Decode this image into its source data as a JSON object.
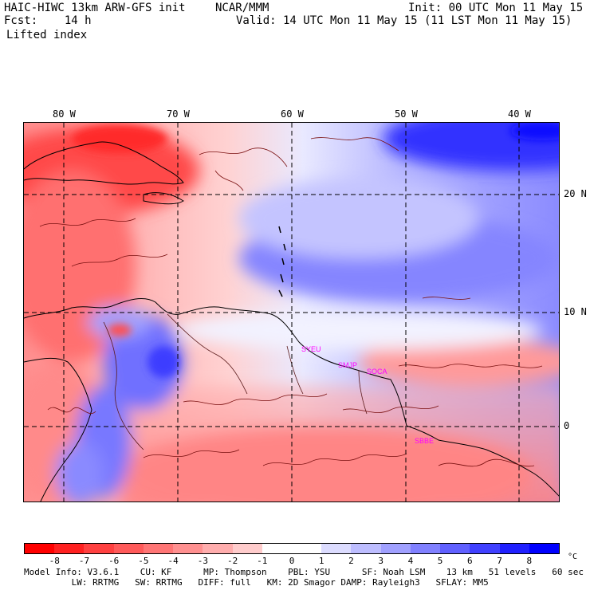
{
  "header": {
    "model": "HAIC-HIWC 13km ARW-GFS init",
    "org": "NCAR/MMM",
    "init": "Init: 00 UTC Mon 11 May 15",
    "fcst": "Fcst:    14 h",
    "valid": "Valid: 14 UTC Mon 11 May 15 (11 LST Mon 11 May 15)",
    "field": "Lifted index"
  },
  "axes": {
    "lon_labels": [
      "80 W",
      "70 W",
      "60 W",
      "50 W",
      "40 W"
    ],
    "lat_labels": [
      "20 N",
      "10 N",
      "0"
    ]
  },
  "stations": [
    "SYEU",
    "SMJP",
    "SOCA",
    "SBBE"
  ],
  "colorbar": {
    "ticks": [
      "-8",
      "-7",
      "-6",
      "-5",
      "-4",
      "-3",
      "-2",
      "-1",
      "0",
      "1",
      "2",
      "3",
      "4",
      "5",
      "6",
      "7",
      "8"
    ],
    "unit": "°C",
    "colors": [
      "#ff0000",
      "#ff2020",
      "#ff4040",
      "#ff5a5a",
      "#ff7575",
      "#ff9090",
      "#ffadad",
      "#ffcccc",
      "#ffffff",
      "#ffffff",
      "#dcdcff",
      "#bdbdff",
      "#a0a0ff",
      "#8080ff",
      "#6060ff",
      "#4040ff",
      "#2020ff",
      "#0000ff"
    ]
  },
  "footer": {
    "line1": "Model Info: V3.6.1    CU: KF      MP: Thompson    PBL: YSU      SF: Noah LSM    13 km   51 levels   60 sec",
    "line2": "         LW: RRTMG   SW: RRTMG   DIFF: full   KM: 2D Smagor DAMP: Rayleigh3   SFLAY: MM5"
  }
}
